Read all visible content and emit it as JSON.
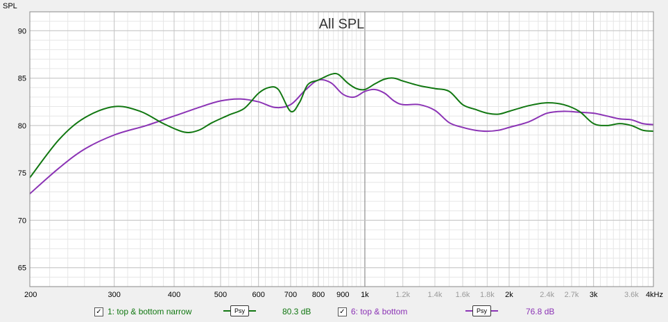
{
  "chart_data": {
    "type": "line",
    "title": "All SPL",
    "ylabel": "SPL",
    "xlabel": "",
    "x_scale": "log",
    "xlim": [
      200,
      4000
    ],
    "ylim": [
      63,
      92
    ],
    "y_ticks": [
      65,
      70,
      75,
      80,
      85,
      90
    ],
    "x_ticks": [
      {
        "v": 200,
        "label": "200",
        "major": true
      },
      {
        "v": 300,
        "label": "300",
        "major": true
      },
      {
        "v": 400,
        "label": "400",
        "major": true
      },
      {
        "v": 500,
        "label": "500",
        "major": true
      },
      {
        "v": 600,
        "label": "600",
        "major": true
      },
      {
        "v": 700,
        "label": "700",
        "major": true
      },
      {
        "v": 800,
        "label": "800",
        "major": true
      },
      {
        "v": 900,
        "label": "900",
        "major": true
      },
      {
        "v": 1000,
        "label": "1k",
        "major": true
      },
      {
        "v": 1200,
        "label": "1.2k",
        "major": false
      },
      {
        "v": 1400,
        "label": "1.4k",
        "major": false
      },
      {
        "v": 1600,
        "label": "1.6k",
        "major": false
      },
      {
        "v": 1800,
        "label": "1.8k",
        "major": false
      },
      {
        "v": 2000,
        "label": "2k",
        "major": true
      },
      {
        "v": 2400,
        "label": "2.4k",
        "major": false
      },
      {
        "v": 2700,
        "label": "2.7k",
        "major": false
      },
      {
        "v": 3000,
        "label": "3k",
        "major": true
      },
      {
        "v": 3600,
        "label": "3.6k",
        "major": false
      },
      {
        "v": 4000,
        "label": "4kHz",
        "major": true
      }
    ],
    "grid": true,
    "series": [
      {
        "name": "1: top & bottom narrow",
        "color": "#117711",
        "x": [
          200,
          230,
          260,
          300,
          340,
          380,
          420,
          450,
          480,
          520,
          560,
          600,
          630,
          660,
          700,
          730,
          760,
          800,
          850,
          880,
          920,
          960,
          1000,
          1050,
          1100,
          1150,
          1200,
          1300,
          1400,
          1500,
          1600,
          1700,
          1800,
          1900,
          2000,
          2200,
          2400,
          2600,
          2800,
          3000,
          3200,
          3400,
          3600,
          3800,
          4000
        ],
        "y": [
          74.5,
          78.5,
          80.8,
          82.0,
          81.5,
          80.2,
          79.3,
          79.5,
          80.3,
          81.1,
          81.8,
          83.4,
          84.0,
          83.8,
          81.5,
          82.4,
          84.3,
          84.8,
          85.4,
          85.4,
          84.5,
          83.9,
          83.8,
          84.4,
          84.9,
          85.0,
          84.7,
          84.2,
          83.9,
          83.6,
          82.2,
          81.7,
          81.3,
          81.2,
          81.5,
          82.1,
          82.4,
          82.2,
          81.5,
          80.2,
          80.0,
          80.2,
          80.0,
          79.5,
          79.4
        ]
      },
      {
        "name": "6: top & bottom",
        "color": "#8b33b5",
        "x": [
          200,
          230,
          260,
          300,
          350,
          400,
          450,
          500,
          550,
          600,
          650,
          700,
          750,
          800,
          850,
          900,
          950,
          1000,
          1050,
          1100,
          1150,
          1200,
          1300,
          1400,
          1500,
          1600,
          1700,
          1800,
          1900,
          2000,
          2200,
          2400,
          2600,
          2800,
          3000,
          3200,
          3400,
          3600,
          3800,
          4000
        ],
        "y": [
          72.8,
          75.5,
          77.5,
          79.0,
          80.0,
          81.0,
          81.9,
          82.6,
          82.8,
          82.5,
          81.9,
          82.2,
          83.7,
          84.8,
          84.5,
          83.3,
          83.0,
          83.6,
          83.8,
          83.4,
          82.6,
          82.2,
          82.2,
          81.6,
          80.3,
          79.8,
          79.5,
          79.4,
          79.5,
          79.8,
          80.4,
          81.3,
          81.5,
          81.4,
          81.3,
          81.0,
          80.7,
          80.6,
          80.2,
          80.1
        ]
      }
    ]
  },
  "legend": {
    "items": [
      {
        "checkbox": "✓",
        "label": "1: top & bottom narrow",
        "psy": "Psy",
        "value": "80.3 dB",
        "color": "#117711"
      },
      {
        "checkbox": "✓",
        "label": "6: top & bottom",
        "psy": "Psy",
        "value": "76.8 dB",
        "color": "#8b33b5"
      }
    ]
  }
}
